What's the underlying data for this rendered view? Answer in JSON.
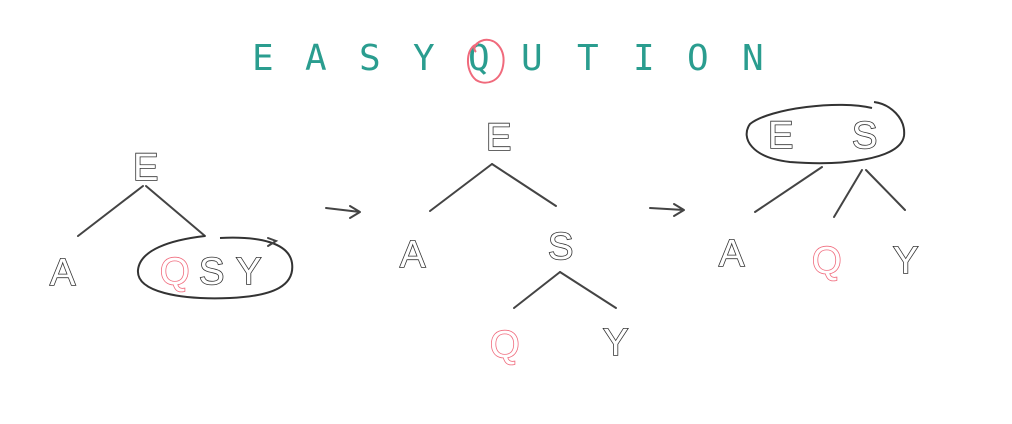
{
  "title": {
    "letters": [
      "E",
      "A",
      "S",
      "Y",
      "Q",
      "U",
      "T",
      "I",
      "O",
      "N"
    ],
    "highlight_index": 4
  },
  "colors": {
    "title": "#2a9d8f",
    "highlight": "#f06a7c",
    "ink": "#333333"
  },
  "trees": [
    {
      "root": "E",
      "left": "A",
      "merged_node": [
        "Q",
        "S",
        "Y"
      ]
    },
    {
      "root": "E",
      "left": "A",
      "right": "S",
      "right_children": [
        "Q",
        "Y"
      ]
    },
    {
      "root_node": [
        "E",
        "S"
      ],
      "children": [
        "A",
        "Q",
        "Y"
      ]
    }
  ],
  "highlight_key": "Q"
}
